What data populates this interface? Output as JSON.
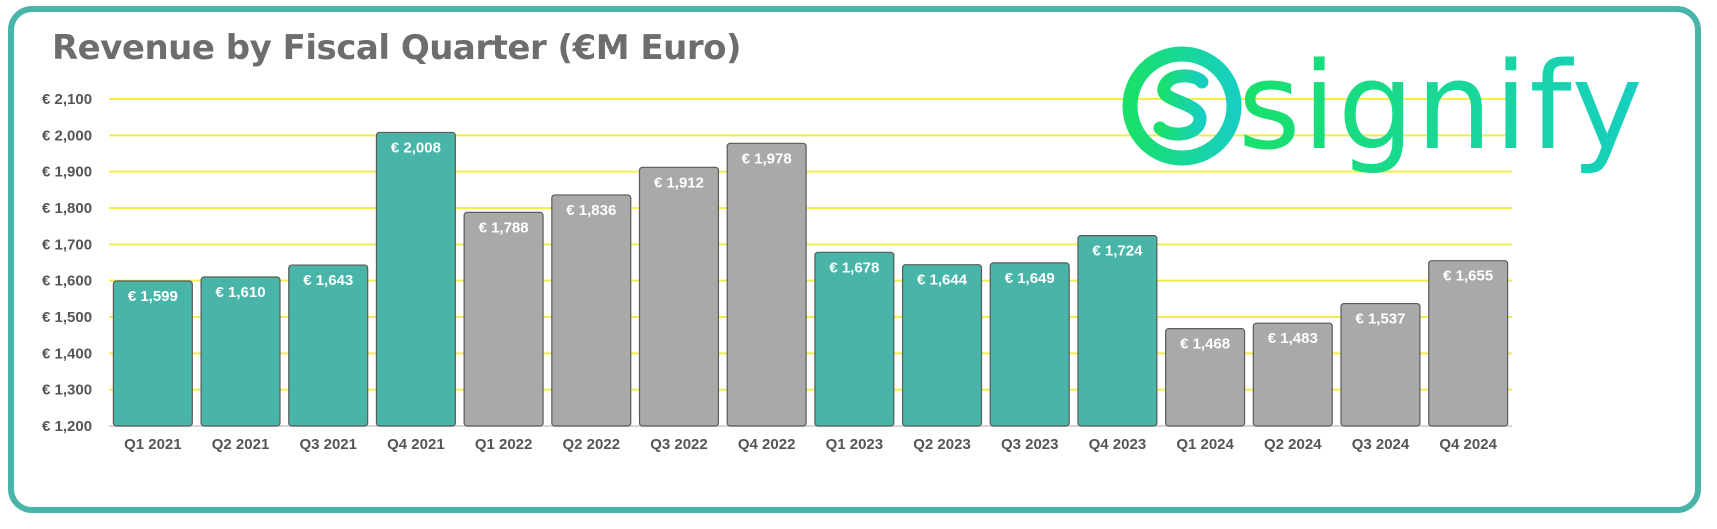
{
  "colors": {
    "frame": "#49b5a9",
    "teal_bar": "#49b5a9",
    "gray_bar": "#a9a9a9",
    "bar_outline": "#5a5a5a",
    "gridline": "#f2ee4d",
    "brand_gradient_start": "#19e06b",
    "brand_gradient_end": "#17cfc0",
    "title": "#6d6d6d"
  },
  "brand": {
    "name": "signify",
    "icon": "s-circle-logo-icon"
  },
  "chart_data": {
    "type": "bar",
    "title": "Revenue by Fiscal Quarter (€M Euro)",
    "xlabel": "",
    "ylabel": "",
    "ylim": [
      1200,
      2100
    ],
    "yticks": [
      1200,
      1300,
      1400,
      1500,
      1600,
      1700,
      1800,
      1900,
      2000,
      2100
    ],
    "ytick_labels": [
      "€ 1,200",
      "€ 1,300",
      "€ 1,400",
      "€ 1,500",
      "€ 1,600",
      "€ 1,700",
      "€ 1,800",
      "€ 1,900",
      "€ 2,000",
      "€ 2,100"
    ],
    "grid": true,
    "categories": [
      "Q1 2021",
      "Q2 2021",
      "Q3 2021",
      "Q4 2021",
      "Q1 2022",
      "Q2 2022",
      "Q3 2022",
      "Q4 2022",
      "Q1 2023",
      "Q2 2023",
      "Q3 2023",
      "Q4 2023",
      "Q1 2024",
      "Q2 2024",
      "Q3 2024",
      "Q4 2024"
    ],
    "values": [
      1599,
      1610,
      1643,
      2008,
      1788,
      1836,
      1912,
      1978,
      1678,
      1644,
      1649,
      1724,
      1468,
      1483,
      1537,
      1655
    ],
    "value_labels": [
      "€ 1,599",
      "€ 1,610",
      "€ 1,643",
      "€ 2,008",
      "€ 1,788",
      "€ 1,836",
      "€ 1,912",
      "€ 1,978",
      "€ 1,678",
      "€ 1,644",
      "€ 1,649",
      "€ 1,724",
      "€ 1,468",
      "€ 1,483",
      "€ 1,537",
      "€ 1,655"
    ],
    "bar_colors": [
      "teal",
      "teal",
      "teal",
      "teal",
      "gray",
      "gray",
      "gray",
      "gray",
      "teal",
      "teal",
      "teal",
      "teal",
      "gray",
      "gray",
      "gray",
      "gray"
    ]
  }
}
